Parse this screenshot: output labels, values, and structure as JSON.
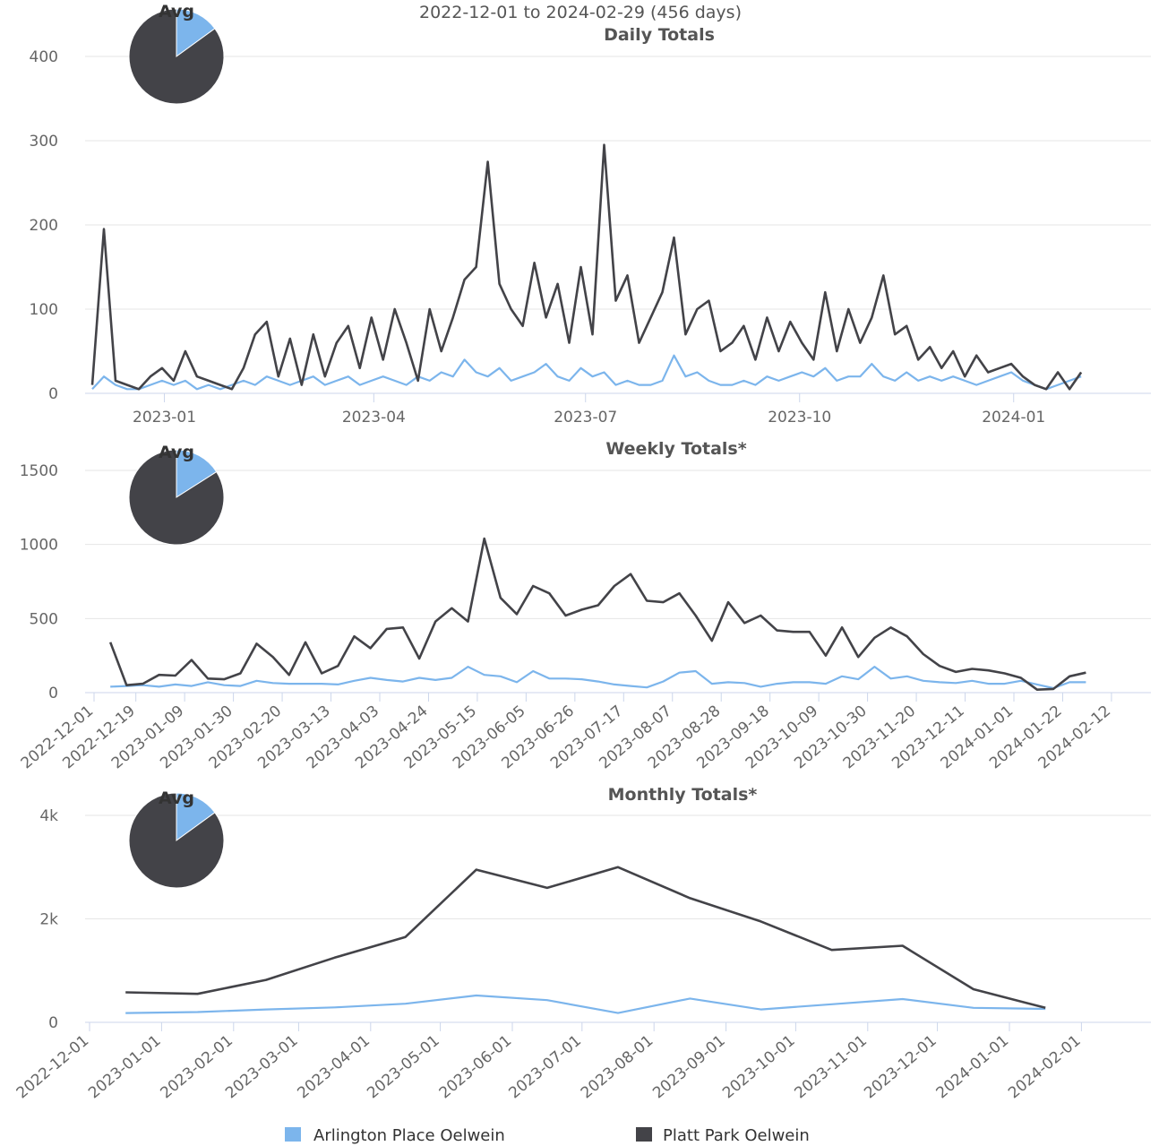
{
  "period": "2022-12-01 to 2024-02-29 (456 days)",
  "chart_data": [
    {
      "type": "line",
      "title": "Daily Totals",
      "pie": {
        "title": "Avg",
        "values": [
          15,
          85
        ]
      },
      "xlim": [
        "2022-12-01",
        "2024-02-29"
      ],
      "xticks": [
        "2023-01",
        "2023-04",
        "2023-07",
        "2023-10",
        "2024-01"
      ],
      "ylim": [
        0,
        400
      ],
      "yticks": [
        0,
        100,
        200,
        300,
        400
      ],
      "grid": true,
      "x": [
        "2022-12-01",
        "2022-12-06",
        "2022-12-11",
        "2022-12-16",
        "2022-12-21",
        "2022-12-26",
        "2022-12-31",
        "2023-01-05",
        "2023-01-10",
        "2023-01-15",
        "2023-01-20",
        "2023-01-25",
        "2023-01-30",
        "2023-02-04",
        "2023-02-09",
        "2023-02-14",
        "2023-02-19",
        "2023-02-24",
        "2023-03-01",
        "2023-03-06",
        "2023-03-11",
        "2023-03-16",
        "2023-03-21",
        "2023-03-26",
        "2023-03-31",
        "2023-04-05",
        "2023-04-10",
        "2023-04-15",
        "2023-04-20",
        "2023-04-25",
        "2023-04-30",
        "2023-05-05",
        "2023-05-10",
        "2023-05-15",
        "2023-05-20",
        "2023-05-25",
        "2023-05-30",
        "2023-06-04",
        "2023-06-09",
        "2023-06-14",
        "2023-06-19",
        "2023-06-24",
        "2023-06-29",
        "2023-07-04",
        "2023-07-09",
        "2023-07-14",
        "2023-07-19",
        "2023-07-24",
        "2023-07-29",
        "2023-08-03",
        "2023-08-08",
        "2023-08-13",
        "2023-08-18",
        "2023-08-23",
        "2023-08-28",
        "2023-09-02",
        "2023-09-07",
        "2023-09-12",
        "2023-09-17",
        "2023-09-22",
        "2023-09-27",
        "2023-10-02",
        "2023-10-07",
        "2023-10-12",
        "2023-10-17",
        "2023-10-22",
        "2023-10-27",
        "2023-11-01",
        "2023-11-06",
        "2023-11-11",
        "2023-11-16",
        "2023-11-21",
        "2023-11-26",
        "2023-12-01",
        "2023-12-06",
        "2023-12-11",
        "2023-12-16",
        "2023-12-21",
        "2023-12-26",
        "2023-12-31",
        "2024-01-05",
        "2024-01-10",
        "2024-01-15",
        "2024-01-20",
        "2024-01-25",
        "2024-01-30"
      ],
      "series": [
        {
          "name": "Arlington Place Oelwein",
          "color": "#7cb5ec",
          "values": [
            5,
            20,
            10,
            5,
            5,
            10,
            15,
            10,
            15,
            5,
            10,
            5,
            10,
            15,
            10,
            20,
            15,
            10,
            15,
            20,
            10,
            15,
            20,
            10,
            15,
            20,
            15,
            10,
            20,
            15,
            25,
            20,
            40,
            25,
            20,
            30,
            15,
            20,
            25,
            35,
            20,
            15,
            30,
            20,
            25,
            10,
            15,
            10,
            10,
            15,
            45,
            20,
            25,
            15,
            10,
            10,
            15,
            10,
            20,
            15,
            20,
            25,
            20,
            30,
            15,
            20,
            20,
            35,
            20,
            15,
            25,
            15,
            20,
            15,
            20,
            15,
            10,
            15,
            20,
            25,
            15,
            10,
            5,
            10,
            15,
            20
          ]
        },
        {
          "name": "Platt Park Oelwein",
          "color": "#434348",
          "values": [
            10,
            195,
            15,
            10,
            5,
            20,
            30,
            15,
            50,
            20,
            15,
            10,
            5,
            30,
            70,
            85,
            20,
            65,
            10,
            70,
            20,
            60,
            80,
            30,
            90,
            40,
            100,
            60,
            15,
            100,
            50,
            90,
            135,
            150,
            275,
            130,
            100,
            80,
            155,
            90,
            130,
            60,
            150,
            70,
            295,
            110,
            140,
            60,
            90,
            120,
            185,
            70,
            100,
            110,
            50,
            60,
            80,
            40,
            90,
            50,
            85,
            60,
            40,
            120,
            50,
            100,
            60,
            90,
            140,
            70,
            80,
            40,
            55,
            30,
            50,
            20,
            45,
            25,
            30,
            35,
            20,
            10,
            5,
            25,
            5,
            25
          ]
        }
      ]
    },
    {
      "type": "line",
      "title": "Weekly Totals*",
      "pie": {
        "title": "Avg",
        "values": [
          16,
          84
        ]
      },
      "xlim": [
        "2022-12-01",
        "2024-02-29"
      ],
      "xticks": [
        "2022-12-01",
        "2022-12-19",
        "2023-01-09",
        "2023-01-30",
        "2023-02-20",
        "2023-03-13",
        "2023-04-03",
        "2023-04-24",
        "2023-05-15",
        "2023-06-05",
        "2023-06-26",
        "2023-07-17",
        "2023-08-07",
        "2023-08-28",
        "2023-09-18",
        "2023-10-09",
        "2023-10-30",
        "2023-11-20",
        "2023-12-11",
        "2024-01-01",
        "2024-01-22",
        "2024-02-12"
      ],
      "ylim": [
        0,
        1500
      ],
      "yticks": [
        0,
        500,
        1000,
        1500
      ],
      "grid": true,
      "x": [
        "2022-12-08",
        "2022-12-15",
        "2022-12-22",
        "2022-12-29",
        "2023-01-05",
        "2023-01-12",
        "2023-01-19",
        "2023-01-26",
        "2023-02-02",
        "2023-02-09",
        "2023-02-16",
        "2023-02-23",
        "2023-03-02",
        "2023-03-09",
        "2023-03-16",
        "2023-03-23",
        "2023-03-30",
        "2023-04-06",
        "2023-04-13",
        "2023-04-20",
        "2023-04-27",
        "2023-05-04",
        "2023-05-11",
        "2023-05-18",
        "2023-05-25",
        "2023-06-01",
        "2023-06-08",
        "2023-06-15",
        "2023-06-22",
        "2023-06-29",
        "2023-07-06",
        "2023-07-13",
        "2023-07-20",
        "2023-07-27",
        "2023-08-03",
        "2023-08-10",
        "2023-08-17",
        "2023-08-24",
        "2023-08-31",
        "2023-09-07",
        "2023-09-14",
        "2023-09-21",
        "2023-09-28",
        "2023-10-05",
        "2023-10-12",
        "2023-10-19",
        "2023-10-26",
        "2023-11-02",
        "2023-11-09",
        "2023-11-16",
        "2023-11-23",
        "2023-11-30",
        "2023-12-07",
        "2023-12-14",
        "2023-12-21",
        "2023-12-28",
        "2024-01-04",
        "2024-01-11",
        "2024-01-18",
        "2024-01-25",
        "2024-02-01"
      ],
      "series": [
        {
          "name": "Arlington Place Oelwein",
          "color": "#7cb5ec",
          "values": [
            40,
            45,
            50,
            40,
            55,
            45,
            70,
            50,
            45,
            80,
            65,
            60,
            60,
            60,
            55,
            80,
            100,
            85,
            75,
            100,
            85,
            100,
            175,
            120,
            110,
            70,
            145,
            95,
            95,
            90,
            75,
            55,
            45,
            35,
            75,
            135,
            145,
            60,
            70,
            65,
            40,
            60,
            70,
            70,
            60,
            110,
            90,
            175,
            95,
            110,
            80,
            70,
            65,
            80,
            60,
            60,
            80,
            55,
            30,
            70,
            70
          ]
        },
        {
          "name": "Platt Park Oelwein",
          "color": "#434348",
          "values": [
            340,
            50,
            60,
            120,
            115,
            220,
            95,
            90,
            130,
            330,
            240,
            120,
            340,
            130,
            180,
            380,
            300,
            430,
            440,
            230,
            480,
            570,
            480,
            1040,
            640,
            530,
            720,
            670,
            520,
            560,
            590,
            720,
            800,
            620,
            610,
            670,
            520,
            350,
            610,
            470,
            520,
            420,
            410,
            410,
            250,
            440,
            240,
            370,
            440,
            380,
            260,
            180,
            140,
            160,
            150,
            130,
            100,
            20,
            25,
            110,
            135
          ]
        }
      ]
    },
    {
      "type": "line",
      "title": "Monthly Totals*",
      "pie": {
        "title": "Avg",
        "values": [
          15,
          85
        ]
      },
      "xlim": [
        "2022-12-01",
        "2024-02-29"
      ],
      "xticks": [
        "2022-12-01",
        "2023-01-01",
        "2023-02-01",
        "2023-03-01",
        "2023-04-01",
        "2023-05-01",
        "2023-06-01",
        "2023-07-01",
        "2023-08-01",
        "2023-09-01",
        "2023-10-01",
        "2023-11-01",
        "2023-12-01",
        "2024-01-01",
        "2024-02-01"
      ],
      "ylim": [
        0,
        4000
      ],
      "yticks": [
        0,
        {
          "value": 2000,
          "label": "2k"
        },
        {
          "value": 4000,
          "label": "4k"
        }
      ],
      "grid": true,
      "x": [
        "2022-12",
        "2023-01",
        "2023-02",
        "2023-03",
        "2023-04",
        "2023-05",
        "2023-06",
        "2023-07",
        "2023-08",
        "2023-09",
        "2023-10",
        "2023-11",
        "2023-12",
        "2024-01"
      ],
      "series": [
        {
          "name": "Arlington Place Oelwein",
          "color": "#7cb5ec",
          "values": [
            180,
            200,
            250,
            290,
            360,
            520,
            430,
            180,
            460,
            250,
            350,
            450,
            280,
            260
          ]
        },
        {
          "name": "Platt Park Oelwein",
          "color": "#434348",
          "values": [
            580,
            550,
            820,
            1250,
            1650,
            2950,
            2600,
            3000,
            2400,
            1950,
            1400,
            1480,
            640,
            280
          ]
        }
      ]
    }
  ]
}
